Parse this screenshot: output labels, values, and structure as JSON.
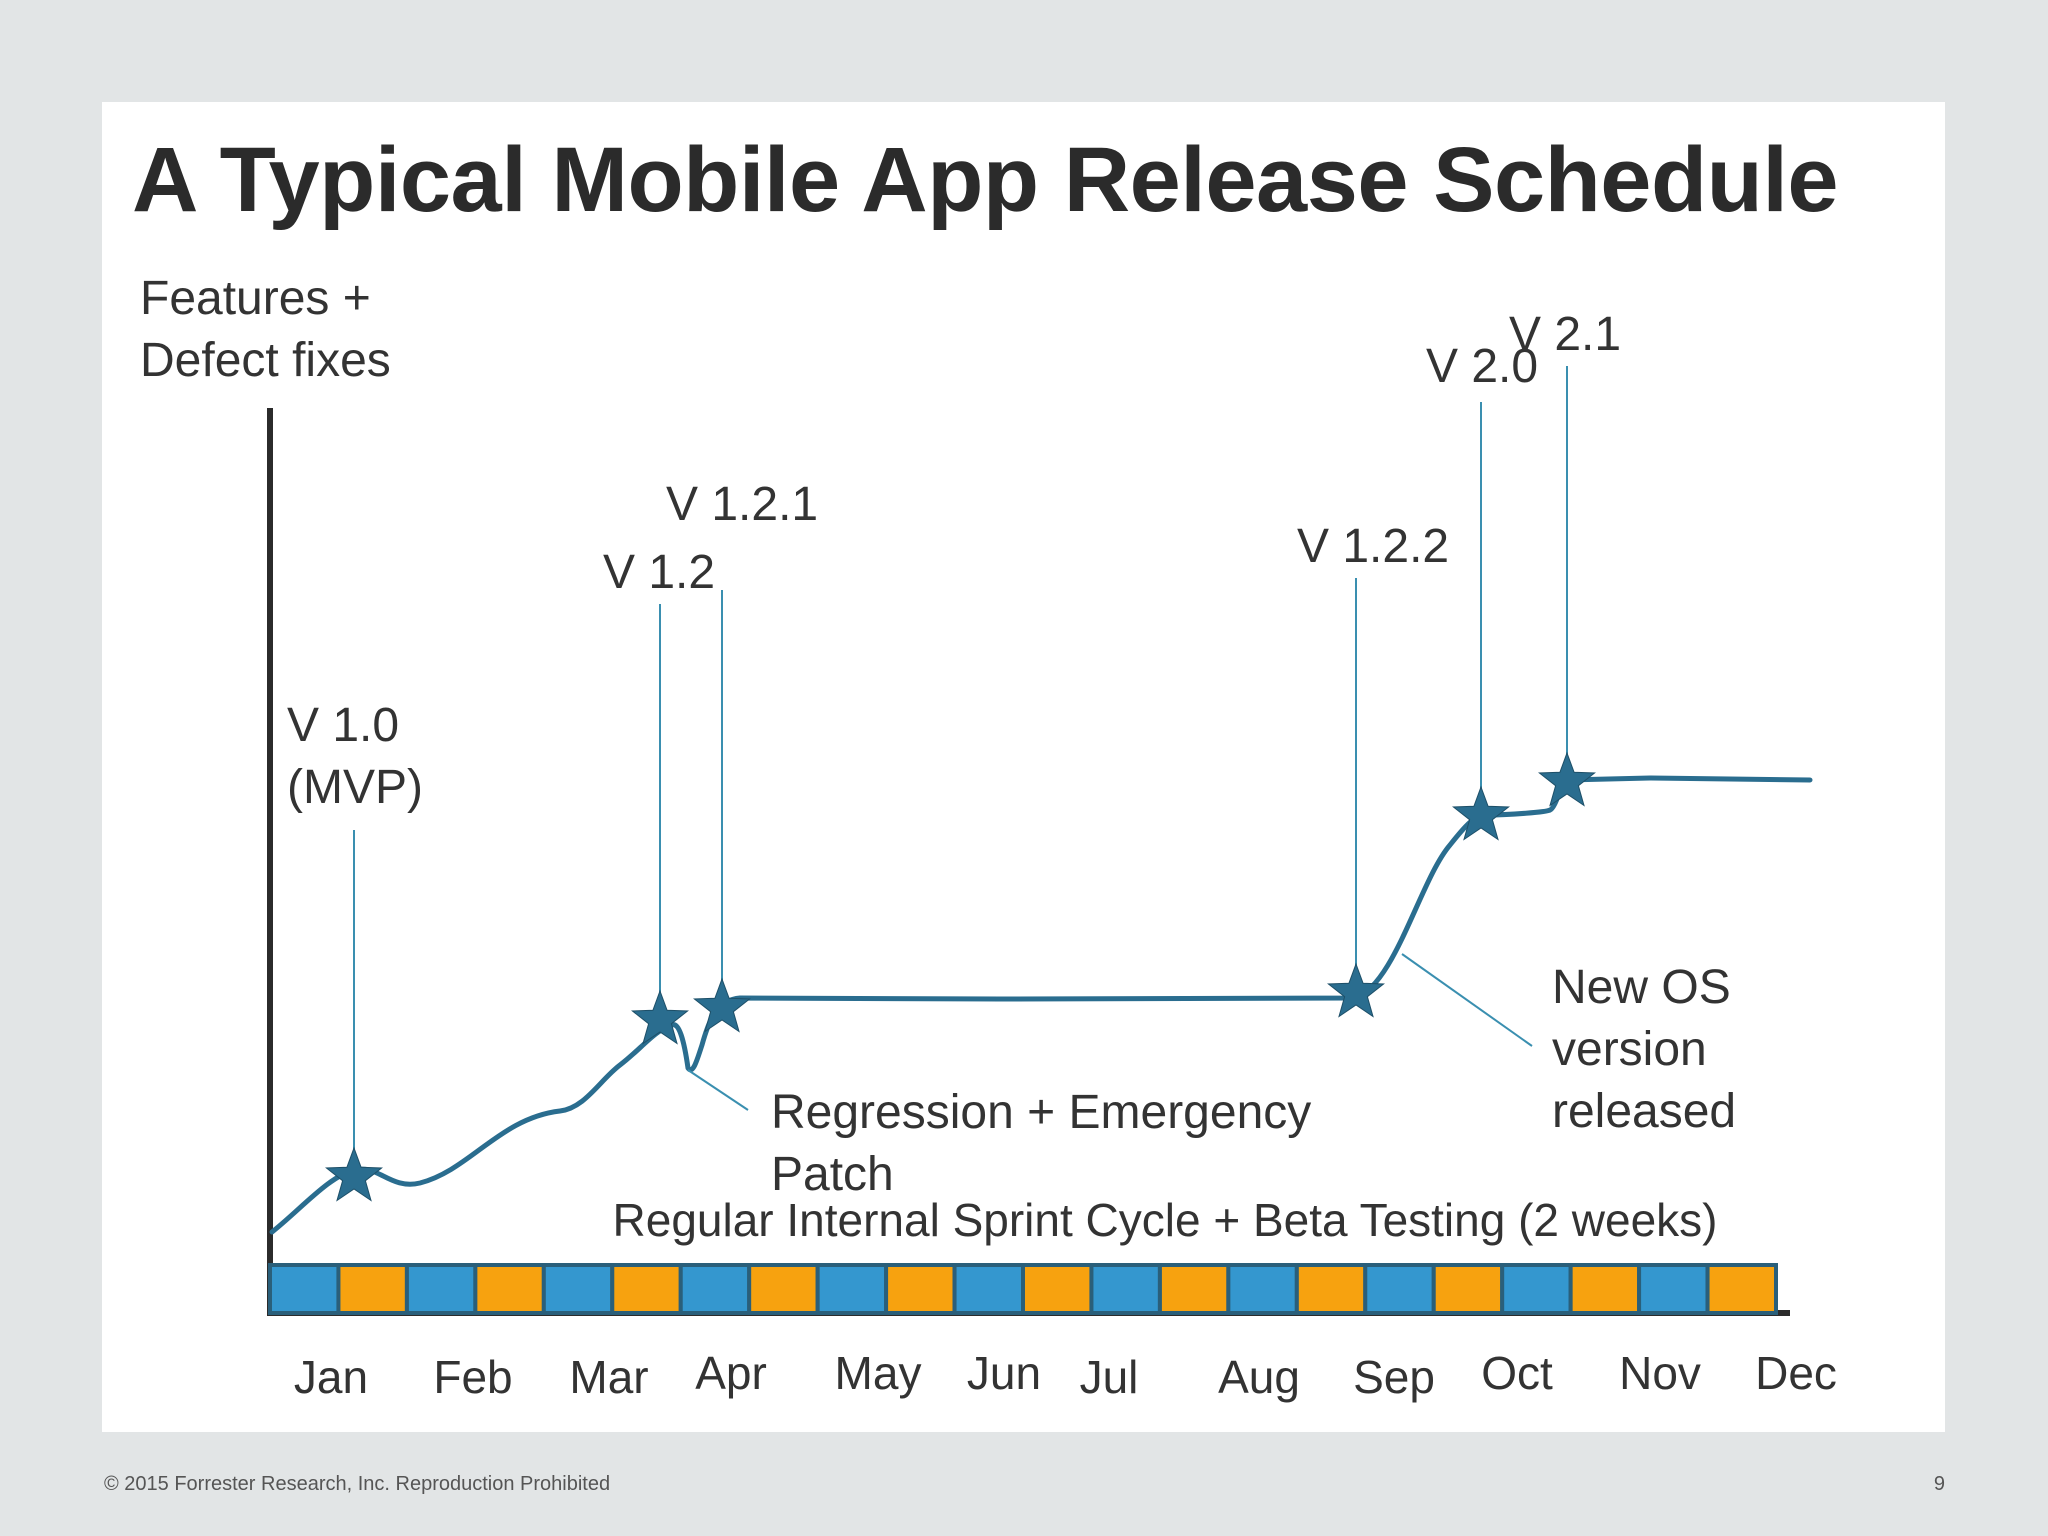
{
  "slide": {
    "title": "A Typical Mobile App Release Schedule",
    "footer": "© 2015 Forrester Research, Inc. Reproduction Prohibited",
    "page_number": "9"
  },
  "chart_data": {
    "type": "line",
    "ylabel": [
      "Features +",
      "Defect fixes"
    ],
    "xlabel": "",
    "x_ticks": [
      "Jan",
      "Feb",
      "Mar",
      "Apr",
      "May",
      "Jun",
      "Jul",
      "Aug",
      "Sep",
      "Oct",
      "Nov",
      "Dec"
    ],
    "sprint_label": "Regular Internal Sprint Cycle + Beta Testing (2 weeks)",
    "sprint_count": 22,
    "sprint_colors": [
      "#3497cf",
      "#f7a20f"
    ],
    "line_color": "#2a6d8f",
    "callout_color": "#3a8fb0",
    "releases": [
      {
        "label": [
          "V 1.0",
          "(MVP)"
        ]
      },
      {
        "label": [
          "V 1.2"
        ]
      },
      {
        "label": [
          "V 1.2.1"
        ]
      },
      {
        "label": [
          "V 1.2.2"
        ]
      },
      {
        "label": [
          "V 2.0"
        ]
      },
      {
        "label": [
          "V 2.1"
        ]
      }
    ],
    "annotations": [
      {
        "text": [
          "Regression + Emergency",
          "Patch"
        ]
      },
      {
        "text": [
          "New OS",
          "version",
          "released"
        ]
      }
    ]
  }
}
